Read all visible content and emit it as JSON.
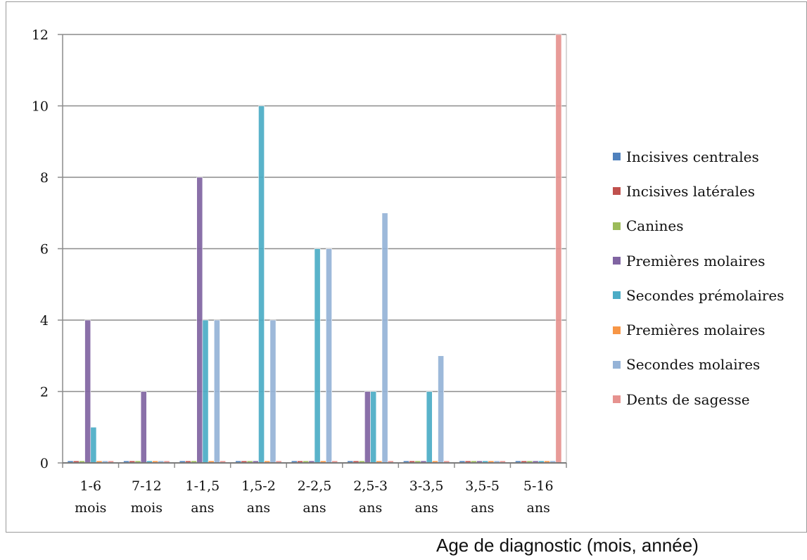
{
  "top_label": "",
  "chart_data": {
    "type": "bar",
    "title": "",
    "xlabel": "Age de diagnostic (mois, année)",
    "ylabel": "",
    "ylim": [
      0,
      12
    ],
    "yticks": [
      0,
      2,
      4,
      6,
      8,
      10,
      12
    ],
    "grid": true,
    "legend_position": "right",
    "categories": [
      [
        "1-6",
        "mois"
      ],
      [
        "7-12",
        "mois"
      ],
      [
        "1-1,5",
        "ans"
      ],
      [
        "1,5-2",
        "ans"
      ],
      [
        "2-2,5",
        "ans"
      ],
      [
        "2,5-3",
        "ans"
      ],
      [
        "3-3,5",
        "ans"
      ],
      [
        "3,5-5",
        "ans"
      ],
      [
        "5-16",
        "ans"
      ]
    ],
    "series": [
      {
        "name": "Incisives centrales",
        "color": "#4f81bd",
        "values": [
          0,
          0,
          0,
          0,
          0,
          0,
          0,
          0,
          0
        ]
      },
      {
        "name": "Incisives latérales",
        "color": "#c0504d",
        "values": [
          0,
          0,
          0,
          0,
          0,
          0,
          0,
          0,
          0
        ]
      },
      {
        "name": "Canines",
        "color": "#9bbb59",
        "values": [
          0,
          0,
          0,
          0,
          0,
          0,
          0,
          0,
          0
        ]
      },
      {
        "name": "Premières molaires",
        "color": "#8064a2",
        "values": [
          4,
          2,
          8,
          0,
          0,
          2,
          0,
          0,
          0
        ]
      },
      {
        "name": "Secondes prémolaires",
        "color": "#4bacc6",
        "values": [
          1,
          0,
          4,
          10,
          6,
          2,
          2,
          0,
          0
        ]
      },
      {
        "name": "Premières molaires",
        "color": "#f79646",
        "values": [
          0,
          0,
          0,
          0,
          0,
          0,
          0,
          0,
          0
        ]
      },
      {
        "name": "Secondes molaires",
        "color": "#95b3d7",
        "values": [
          0,
          0,
          4,
          4,
          6,
          7,
          3,
          0,
          0
        ]
      },
      {
        "name": "Dents de sagesse",
        "color": "#e6928f",
        "values": [
          0,
          0,
          0,
          0,
          0,
          0,
          0,
          0,
          12
        ]
      }
    ]
  }
}
